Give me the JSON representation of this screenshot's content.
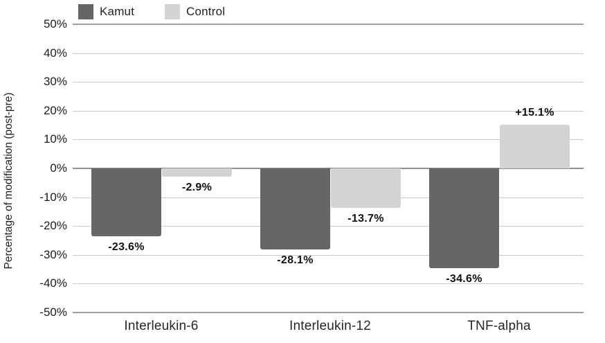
{
  "chart_data": {
    "type": "bar",
    "title": "",
    "xlabel": "",
    "ylabel": "Percentage of modification (post-pre)",
    "categories": [
      "Interleukin-6",
      "Interleukin-12",
      "TNF-alpha"
    ],
    "series": [
      {
        "name": "Kamut",
        "color": "#666666",
        "values": [
          -23.6,
          -28.1,
          -34.6
        ],
        "labels": [
          "-23.6%",
          "-28.1%",
          "-34.6%"
        ]
      },
      {
        "name": "Control",
        "color": "#d3d3d3",
        "values": [
          -2.9,
          -13.7,
          15.1
        ],
        "labels": [
          "-2.9%",
          "-13.7%",
          "+15.1%"
        ]
      }
    ],
    "ylim": [
      -50,
      50
    ],
    "y_tick_step": 10,
    "y_ticks": [
      "50%",
      "40%",
      "30%",
      "20%",
      "10%",
      "0%",
      "-10%",
      "-20%",
      "-30%",
      "-40%",
      "-50%"
    ],
    "grid": "horizontal",
    "legend_position": "top-left"
  },
  "colors": {
    "background": "#ffffff",
    "grid_minor": "#c9c9c9",
    "grid_outer": "#9e9e9e",
    "grid_zero": "#8f8f8f",
    "text": "#1c1c1c"
  }
}
